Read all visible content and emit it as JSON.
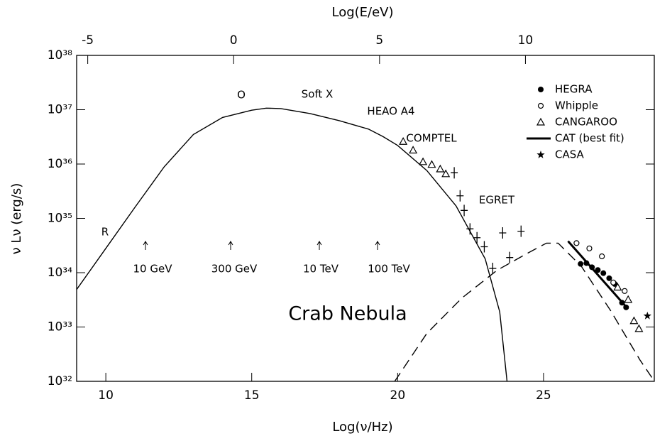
{
  "chart_data": {
    "type": "scatter",
    "title": "Crab Nebula",
    "xlabel": "Log(ν/Hz)",
    "x2label": "Log(E/eV)",
    "ylabel": "ν Lν  (erg/s)",
    "xlim": [
      9,
      28.82
    ],
    "xticks": [
      10,
      15,
      20,
      25
    ],
    "x2lim": [
      -5.38,
      14.44
    ],
    "x2ticks": [
      -5,
      0,
      5,
      10
    ],
    "ylim": [
      1e+32,
      1e+38
    ],
    "yscale": "log",
    "yticks": [
      {
        "value": 1e+32,
        "label": "10³²"
      },
      {
        "value": 1e+33,
        "label": "10³³"
      },
      {
        "value": 1e+34,
        "label": "10³⁴"
      },
      {
        "value": 1e+35,
        "label": "10³⁵"
      },
      {
        "value": 1e+36,
        "label": "10³⁶"
      },
      {
        "value": 1e+37,
        "label": "10³⁷"
      },
      {
        "value": 1e+38,
        "label": "10³⁸"
      }
    ],
    "annotations": [
      "R",
      "O",
      "Soft X",
      "HEAO A4",
      "COMPTEL",
      "EGRET",
      "10 GeV",
      "300 GeV",
      "10 TeV",
      "100 TeV"
    ],
    "curves": [
      {
        "style": "solid",
        "color": "#000000",
        "x": [
          9,
          10,
          11,
          12,
          13,
          14,
          15,
          15.5,
          16,
          17,
          18,
          19,
          19.5,
          20,
          21,
          22,
          23,
          23.5,
          23.75
        ],
        "values": [
          4.9e+33,
          2.8e+34,
          1.6e+35,
          8.9e+35,
          3.5e+36,
          7.2e+36,
          9.8e+36,
          1.07e+37,
          1.05e+37,
          8.5e+36,
          6.3e+36,
          4.4e+36,
          3.2e+36,
          2.2e+36,
          7.6e+35,
          1.7e+35,
          1.8e+34,
          1.9e+33,
          1e+32
        ]
      },
      {
        "style": "dashed",
        "color": "#000000",
        "x": [
          19.9,
          21,
          22.2,
          23.4,
          24.4,
          25.1,
          25.5,
          26.3,
          27.3,
          28.3,
          28.8
        ],
        "values": [
          1e+32,
          7.6e+32,
          3.4e+33,
          1.1e+34,
          2.2e+34,
          3.5e+34,
          3.5e+34,
          1.3e+34,
          2e+33,
          2.5e+32,
          1e+32
        ]
      }
    ],
    "series": [
      {
        "name": "HEGRA",
        "marker": "filled-circle",
        "color": "#000000",
        "x": [
          26.27,
          26.47,
          26.66,
          26.86,
          27.05,
          27.25,
          27.44,
          27.69,
          27.83
        ],
        "values": [
          1.45e+34,
          1.5e+34,
          1.26e+34,
          1.12e+34,
          9.8e+33,
          7.9e+33,
          6.2e+33,
          2.8e+33,
          2.3e+33
        ]
      },
      {
        "name": "Whipple",
        "marker": "open-circle",
        "color": "#000000",
        "x": [
          26.13,
          26.57,
          27.0,
          27.39,
          27.78
        ],
        "values": [
          3.5e+34,
          2.8e+34,
          2e+34,
          6.6e+33,
          4.6e+33
        ]
      },
      {
        "name": "CANGAROO",
        "marker": "triangle",
        "color": "#000000",
        "x": [
          27.54,
          27.9,
          28.1,
          28.27
        ],
        "values": [
          5.4e+33,
          3.2e+33,
          1.3e+33,
          9.3e+32
        ]
      },
      {
        "name": "CAT (best fit)",
        "marker": "line",
        "color": "#000000",
        "x": [
          25.84,
          27.79
        ],
        "values": [
          3.8e+34,
          2.5e+33
        ]
      },
      {
        "name": "CASA",
        "marker": "star",
        "color": "#000000",
        "x": [
          28.56
        ],
        "values": [
          1.6e+33
        ]
      },
      {
        "marker": "triangle",
        "color": "#000000",
        "x": [
          20.19,
          20.53,
          20.87,
          21.17,
          21.46,
          21.65
        ],
        "values": [
          2.6e+36,
          1.8e+36,
          1.1e+36,
          9.8e+35,
          8.1e+35,
          6.6e+35
        ]
      },
      {
        "marker": "cross",
        "color": "#000000",
        "x": [
          21.94,
          22.14,
          22.28,
          22.48,
          22.72,
          22.97,
          23.26,
          23.6,
          23.84,
          24.23
        ],
        "values": [
          6.9e+35,
          2.6e+35,
          1.4e+35,
          6.4e+34,
          4.4e+34,
          3e+34,
          1.2e+34,
          5.4e+34,
          1.9e+34,
          5.8e+34
        ]
      }
    ]
  }
}
